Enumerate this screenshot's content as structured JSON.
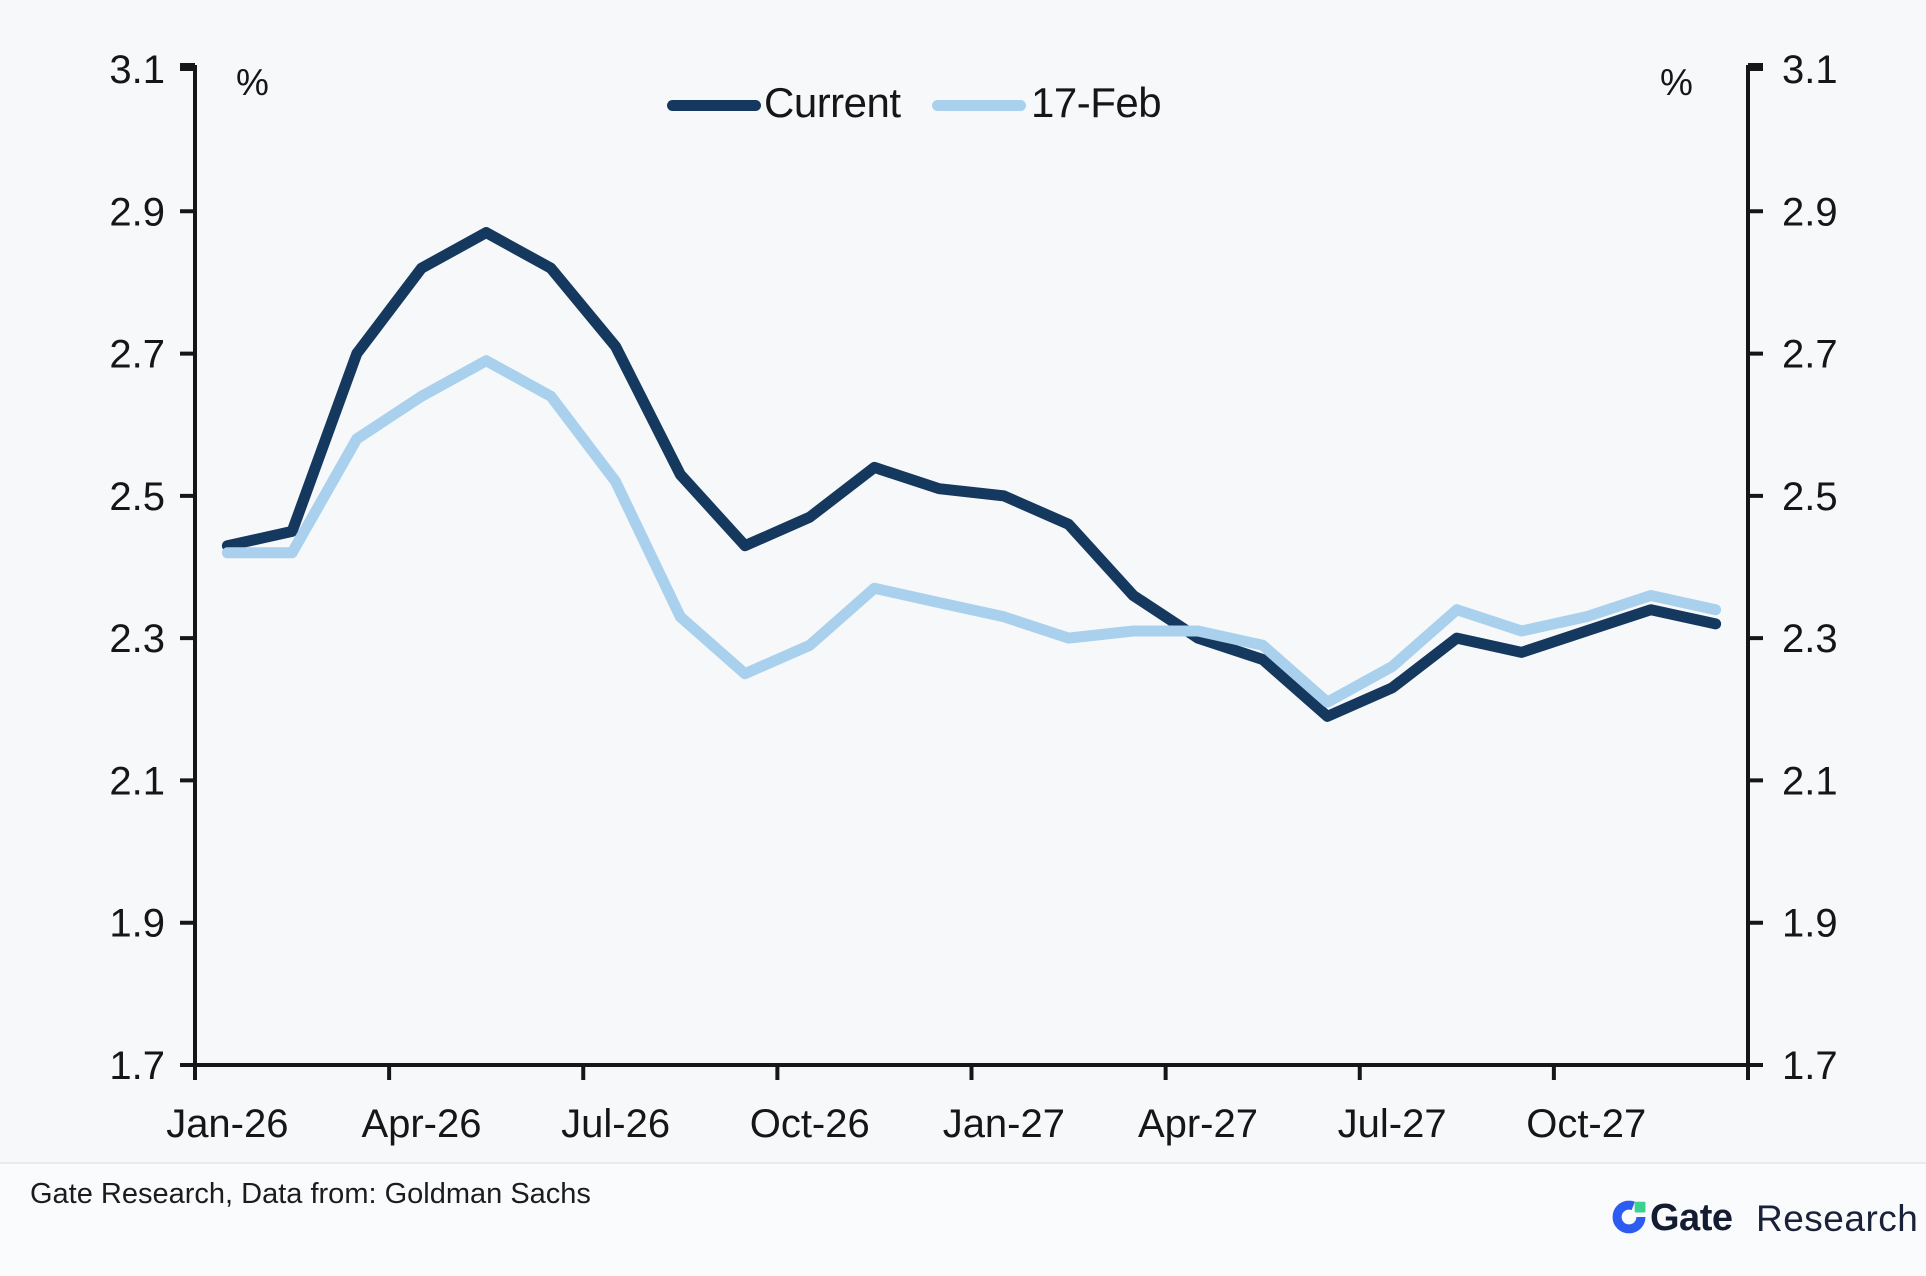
{
  "chart_data": {
    "type": "line",
    "title": "",
    "unit": "%",
    "background": "#F7F8FA",
    "axis_color": "#161616",
    "grid": false,
    "legend_position": "top-center",
    "ylim": [
      1.7,
      3.1
    ],
    "y_ticks": [
      "3.1",
      "2.9",
      "2.7",
      "2.5",
      "2.3",
      "2.1",
      "1.9",
      "1.7"
    ],
    "x_categories": [
      "Jan-26",
      "Feb-26",
      "Mar-26",
      "Apr-26",
      "May-26",
      "Jun-26",
      "Jul-26",
      "Aug-26",
      "Sep-26",
      "Oct-26",
      "Nov-26",
      "Dec-26",
      "Jan-27",
      "Feb-27",
      "Mar-27",
      "Apr-27",
      "May-27",
      "Jun-27",
      "Jul-27",
      "Aug-27",
      "Sep-27",
      "Oct-27",
      "Nov-27",
      "Dec-27"
    ],
    "x_tick_labels": [
      "Jan-26",
      "Apr-26",
      "Jul-26",
      "Oct-26",
      "Jan-27",
      "Apr-27",
      "Jul-27",
      "Oct-27"
    ],
    "series": [
      {
        "name": "Current",
        "color": "#15395E",
        "values": [
          2.43,
          2.45,
          2.7,
          2.82,
          2.87,
          2.82,
          2.71,
          2.53,
          2.43,
          2.47,
          2.54,
          2.51,
          2.5,
          2.46,
          2.36,
          2.3,
          2.27,
          2.19,
          2.23,
          2.3,
          2.28,
          2.31,
          2.34,
          2.32
        ]
      },
      {
        "name": "17-Feb",
        "color": "#A9D1EE",
        "values": [
          2.42,
          2.42,
          2.58,
          2.64,
          2.69,
          2.64,
          2.52,
          2.33,
          2.25,
          2.29,
          2.37,
          2.35,
          2.33,
          2.3,
          2.31,
          2.31,
          2.29,
          2.21,
          2.26,
          2.34,
          2.31,
          2.33,
          2.36,
          2.34
        ]
      }
    ]
  },
  "footer": {
    "source": "Gate Research, Data from: Goldman Sachs",
    "brand": {
      "bold": "Gate",
      "regular": "Research",
      "logo_blue": "#2D5CF1",
      "logo_green": "#3BD18E"
    }
  }
}
